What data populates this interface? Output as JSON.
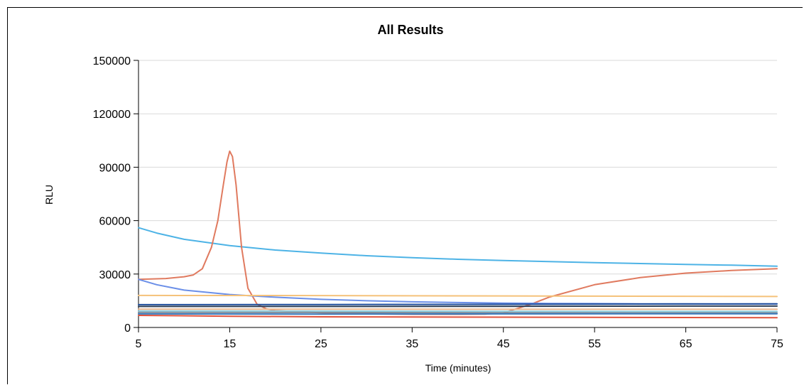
{
  "chart_data": {
    "type": "line",
    "title": "All Results",
    "xlabel": "Time (minutes)",
    "ylabel": "RLU",
    "xlim": [
      5,
      75
    ],
    "ylim": [
      0,
      150000
    ],
    "xticks": [
      5,
      15,
      25,
      35,
      45,
      55,
      65,
      75
    ],
    "yticks": [
      0,
      30000,
      60000,
      90000,
      120000,
      150000
    ],
    "xtick_labels": [
      "5",
      "15",
      "25",
      "35",
      "45",
      "55",
      "65",
      "75"
    ],
    "ytick_labels": [
      "0",
      "30000",
      "60000",
      "90000",
      "120000",
      "150000"
    ],
    "grid": "horizontal",
    "legend": "none",
    "series": [
      {
        "color": "#4db3e6",
        "x": [
          5,
          7,
          10,
          15,
          20,
          25,
          30,
          35,
          40,
          45,
          50,
          55,
          60,
          65,
          70,
          75
        ],
        "y": [
          56000,
          53000,
          49500,
          46000,
          43500,
          41800,
          40300,
          39200,
          38300,
          37600,
          37000,
          36400,
          35900,
          35400,
          35000,
          34400
        ]
      },
      {
        "color": "#e07a5f",
        "x": [
          5,
          8,
          10,
          11,
          12,
          13,
          13.7,
          14.3,
          14.7,
          15,
          15.3,
          15.7,
          16.3,
          17,
          18,
          19,
          20,
          25,
          30,
          35,
          40,
          43,
          45,
          48,
          50,
          55,
          60,
          65,
          70,
          75
        ],
        "y": [
          27000,
          27500,
          28500,
          29500,
          33000,
          45000,
          60000,
          80000,
          93000,
          99000,
          96000,
          80000,
          45000,
          22000,
          13000,
          10500,
          9500,
          8200,
          7600,
          7400,
          7400,
          7500,
          8200,
          13000,
          17000,
          24000,
          28000,
          30500,
          32000,
          33000
        ]
      },
      {
        "color": "#6b8fe8",
        "x": [
          5,
          7,
          10,
          15,
          20,
          25,
          30,
          35,
          40,
          45,
          50,
          55,
          60,
          65,
          70,
          75
        ],
        "y": [
          27000,
          24000,
          21000,
          18500,
          17000,
          15800,
          15000,
          14400,
          14000,
          13700,
          13500,
          13400,
          13300,
          13300,
          13200,
          13200
        ]
      },
      {
        "color": "#f5c27a",
        "x": [
          5,
          25,
          45,
          65,
          75
        ],
        "y": [
          18000,
          17900,
          17700,
          17500,
          17400
        ]
      },
      {
        "color": "#1f4e9c",
        "x": [
          5,
          25,
          45,
          65,
          75
        ],
        "y": [
          12800,
          12900,
          13000,
          13200,
          13300
        ]
      },
      {
        "color": "#2d3e55",
        "x": [
          5,
          25,
          45,
          65,
          75
        ],
        "y": [
          11800,
          11800,
          11900,
          12000,
          12000
        ]
      },
      {
        "color": "#e9b88f",
        "x": [
          5,
          25,
          45,
          65,
          75
        ],
        "y": [
          10300,
          10300,
          10200,
          10200,
          10200
        ]
      },
      {
        "color": "#8fd0e0",
        "x": [
          5,
          25,
          45,
          65,
          75
        ],
        "y": [
          9300,
          9200,
          9100,
          9000,
          9000
        ]
      },
      {
        "color": "#7f8c9a",
        "x": [
          5,
          25,
          45,
          65,
          75
        ],
        "y": [
          8500,
          8400,
          8300,
          8200,
          8200
        ]
      },
      {
        "color": "#3a7bbd",
        "x": [
          5,
          25,
          45,
          65,
          75
        ],
        "y": [
          7600,
          7500,
          7600,
          7700,
          7700
        ]
      },
      {
        "color": "#e0533b",
        "x": [
          5,
          15,
          25,
          35,
          45,
          55,
          65,
          75
        ],
        "y": [
          6800,
          6300,
          6000,
          5900,
          5800,
          5700,
          5600,
          5500
        ]
      }
    ]
  }
}
